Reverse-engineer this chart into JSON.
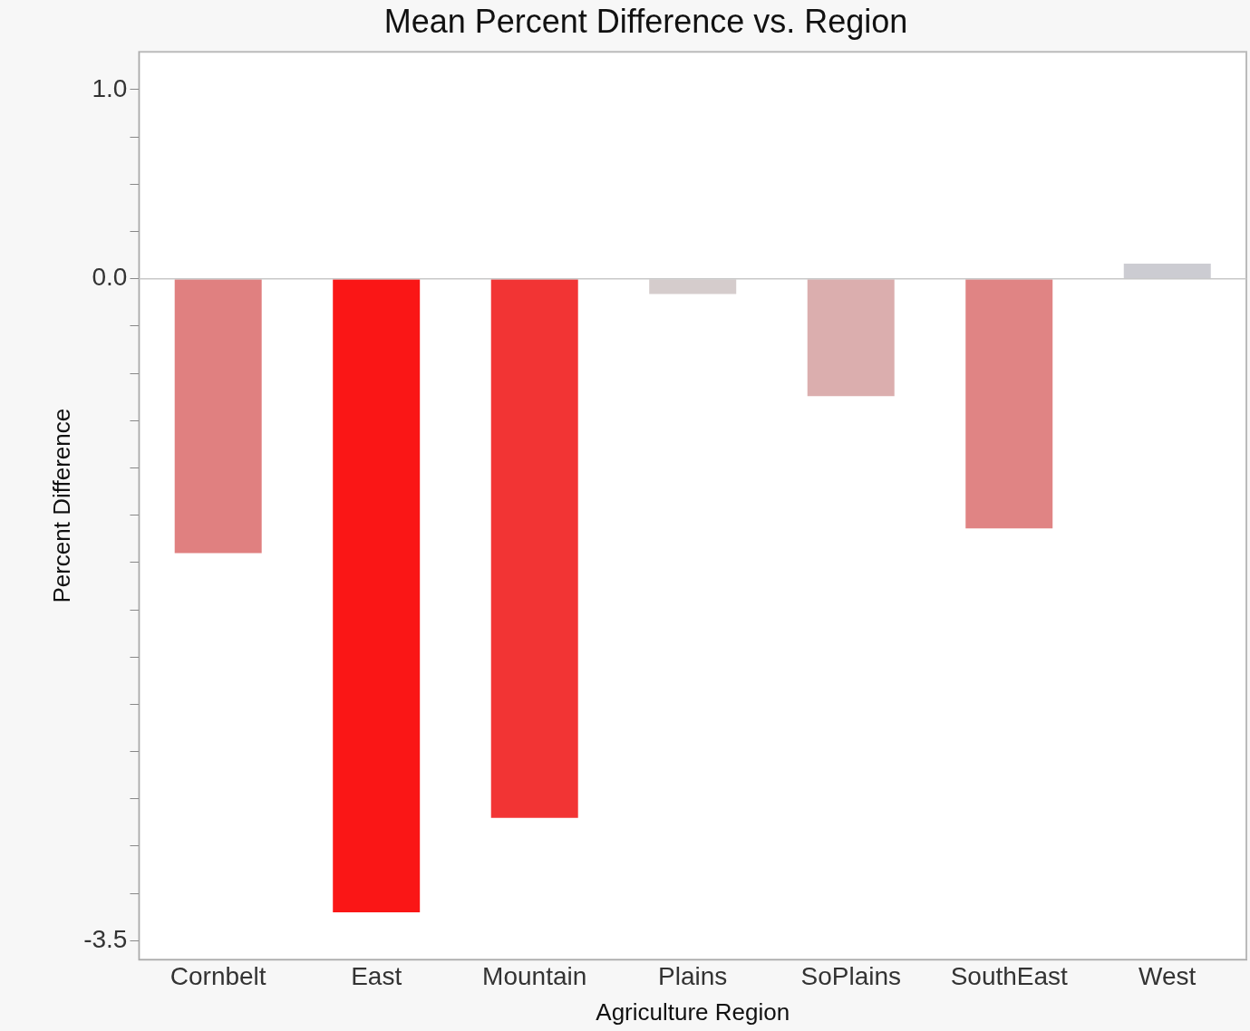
{
  "chart_data": {
    "type": "bar",
    "title": "Mean Percent Difference vs. Region",
    "xlabel": "Agriculture Region",
    "ylabel": "Percent Difference",
    "categories": [
      "Cornbelt",
      "East",
      "Mountain",
      "Plains",
      "SoPlains",
      "SouthEast",
      "West"
    ],
    "values": [
      -1.45,
      -3.35,
      -2.85,
      -0.08,
      -0.62,
      -1.32,
      0.08
    ],
    "colors": [
      "#e08080",
      "#fa1616",
      "#f23434",
      "#d5cccc",
      "#dbaeae",
      "#e08484",
      "#ccccd2"
    ],
    "ylim": [
      -3.6,
      1.2
    ],
    "yticks": [
      {
        "value": 1.0,
        "label": "1.0"
      },
      {
        "value": 0.75,
        "label": null
      },
      {
        "value": 0.5,
        "label": null
      },
      {
        "value": 0.25,
        "label": null
      },
      {
        "value": 0.0,
        "label": "0.0"
      },
      {
        "value": -0.25,
        "label": null
      },
      {
        "value": -0.5,
        "label": null
      },
      {
        "value": -0.75,
        "label": null
      },
      {
        "value": -1.0,
        "label": null
      },
      {
        "value": -1.25,
        "label": null
      },
      {
        "value": -1.5,
        "label": null
      },
      {
        "value": -1.75,
        "label": null
      },
      {
        "value": -2.0,
        "label": null
      },
      {
        "value": -2.25,
        "label": null
      },
      {
        "value": -2.5,
        "label": null
      },
      {
        "value": -2.75,
        "label": null
      },
      {
        "value": -3.0,
        "label": null
      },
      {
        "value": -3.25,
        "label": null
      },
      {
        "value": -3.5,
        "label": "-3.5"
      }
    ],
    "ref_lines": [
      {
        "axis": "y",
        "value": 0,
        "color": "#c8c8c8"
      }
    ],
    "grid": false,
    "legend": false
  }
}
